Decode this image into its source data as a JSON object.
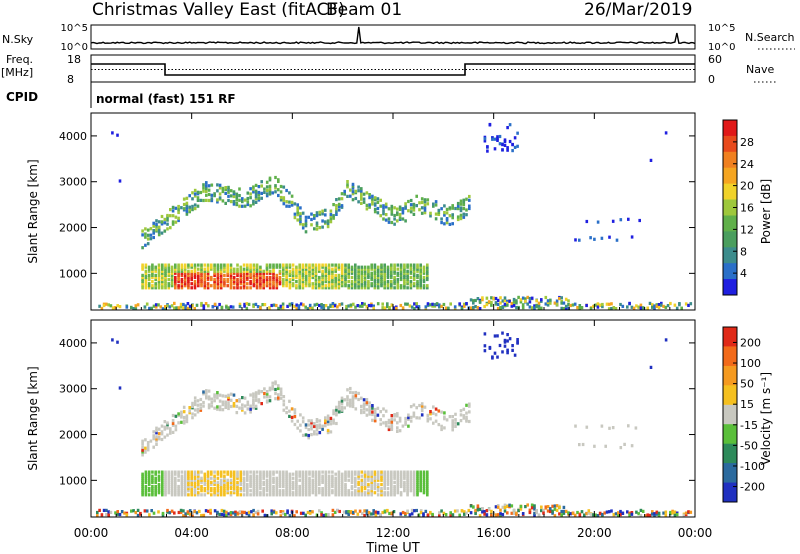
{
  "header": {
    "title": "Christmas Valley East (fitACF)",
    "beam": "Beam 01",
    "date": "26/Mar/2019"
  },
  "status_panels": {
    "noise": {
      "left_label": "N.Sky",
      "right_label": "N.Search",
      "left_ticks": [
        "10^5",
        "10^0"
      ],
      "right_ticks": [
        "10^5",
        "10^0"
      ]
    },
    "freq": {
      "left_label_1": "Freq.",
      "left_label_2": "[MHz]",
      "right_label": "Nave",
      "left_ticks": [
        "18",
        "8"
      ],
      "right_ticks": [
        "60",
        "0"
      ]
    },
    "cpid": {
      "label": "CPID",
      "text": "normal (fast) 151 RF"
    }
  },
  "chart_data": [
    {
      "type": "heatmap",
      "name": "power",
      "ylabel": "Slant Range [km]",
      "ylim": [
        200,
        4500
      ],
      "yticks": [
        "1000",
        "2000",
        "3000",
        "4000"
      ],
      "colorbar": {
        "label": "Power [dB]",
        "ticks": [
          "4",
          "8",
          "12",
          "16",
          "20",
          "24",
          "28"
        ],
        "colors": [
          "#1f1fe0",
          "#2a6fc8",
          "#3c8c8c",
          "#4a9e5e",
          "#60b04a",
          "#9ec83c",
          "#f0d22a",
          "#f5a521",
          "#f08020",
          "#e84a1c",
          "#e01818"
        ]
      }
    },
    {
      "type": "heatmap",
      "name": "velocity",
      "ylabel": "Slant Range [km]",
      "xlabel": "Time UT",
      "ylim": [
        200,
        4500
      ],
      "xticks": [
        "00:00",
        "04:00",
        "08:00",
        "12:00",
        "16:00",
        "20:00",
        "00:00"
      ],
      "yticks": [
        "1000",
        "2000",
        "3000",
        "4000"
      ],
      "colorbar": {
        "label": "Velocity [m s⁻¹]",
        "ticks": [
          "200",
          "100",
          "50",
          "15",
          "-15",
          "-50",
          "-100",
          "-200"
        ],
        "colors": [
          "#2030c0",
          "#2b6a9e",
          "#2d8a5a",
          "#5abf3a",
          "#c8c8c0",
          "#f5c020",
          "#f59a20",
          "#f26a1a",
          "#e02a18"
        ]
      }
    }
  ]
}
